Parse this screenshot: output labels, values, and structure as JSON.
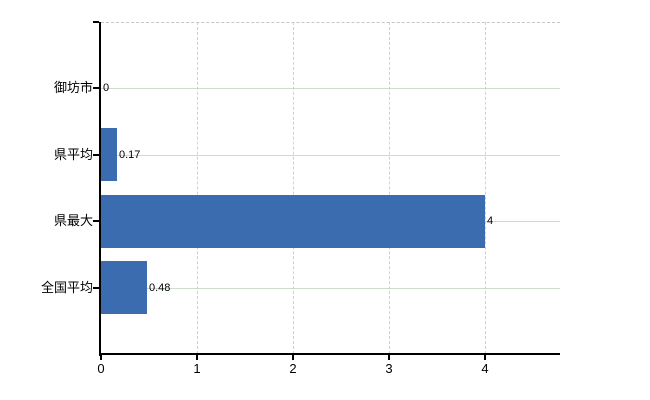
{
  "chart_data": {
    "type": "bar",
    "orientation": "horizontal",
    "title": "",
    "categories": [
      "御坊市",
      "県平均",
      "県最大",
      "全国平均"
    ],
    "values": [
      0,
      0.17,
      4,
      0.48
    ],
    "data_labels": [
      "0",
      "0.17",
      "4",
      "0.48"
    ],
    "x_ticks": [
      0,
      1,
      2,
      3,
      4
    ],
    "x_tick_labels": [
      "0",
      "1",
      "2",
      "3",
      "4"
    ],
    "xlim": [
      0,
      4.78
    ],
    "grid": true,
    "legend": false,
    "bar_color": "#3b6cb0",
    "h_gridline_color": "#d0dbd0",
    "v_gridline_color": "#cfcfda",
    "plot_top_border_color": "#c6c6c6",
    "axis_color": "#000000",
    "text_color": "#000000"
  }
}
